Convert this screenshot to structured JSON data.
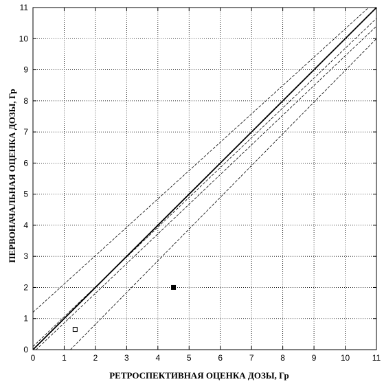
{
  "chart_data": {
    "type": "scatter",
    "xlabel": "РЕТРОСПЕКТИВНАЯ ОЦЕНКА ДОЗЫ, Гр",
    "ylabel": "ПЕРВОНАЧАЛЬНАЯ ОЦЕНКА ДОЗЫ, Гр",
    "xlim": [
      0,
      11
    ],
    "ylim": [
      0,
      11
    ],
    "x_ticks": [
      "0",
      "1",
      "2",
      "3",
      "4",
      "5",
      "6",
      "7",
      "8",
      "9",
      "10",
      "11"
    ],
    "y_ticks": [
      "0",
      "1",
      "2",
      "3",
      "4",
      "5",
      "6",
      "7",
      "8",
      "9",
      "10",
      "11"
    ],
    "grid": true,
    "series": [
      {
        "style": "open-square",
        "points": [
          [
            1.35,
            0.65
          ]
        ]
      },
      {
        "style": "filled-square",
        "points": [
          [
            4.5,
            2.0
          ]
        ]
      }
    ],
    "lines": [
      {
        "style": "solid",
        "from": [
          0,
          0
        ],
        "to": [
          11,
          11
        ]
      },
      {
        "style": "dashed",
        "from": [
          0,
          1.2
        ],
        "to": [
          10.75,
          11
        ]
      },
      {
        "style": "dashed",
        "from": [
          1.2,
          0
        ],
        "to": [
          11,
          10.0
        ]
      },
      {
        "style": "dashed",
        "from": [
          0,
          0.1
        ],
        "to": [
          11,
          10.65
        ]
      },
      {
        "style": "dashed",
        "from": [
          0.1,
          0
        ],
        "to": [
          11,
          10.4
        ]
      }
    ]
  }
}
